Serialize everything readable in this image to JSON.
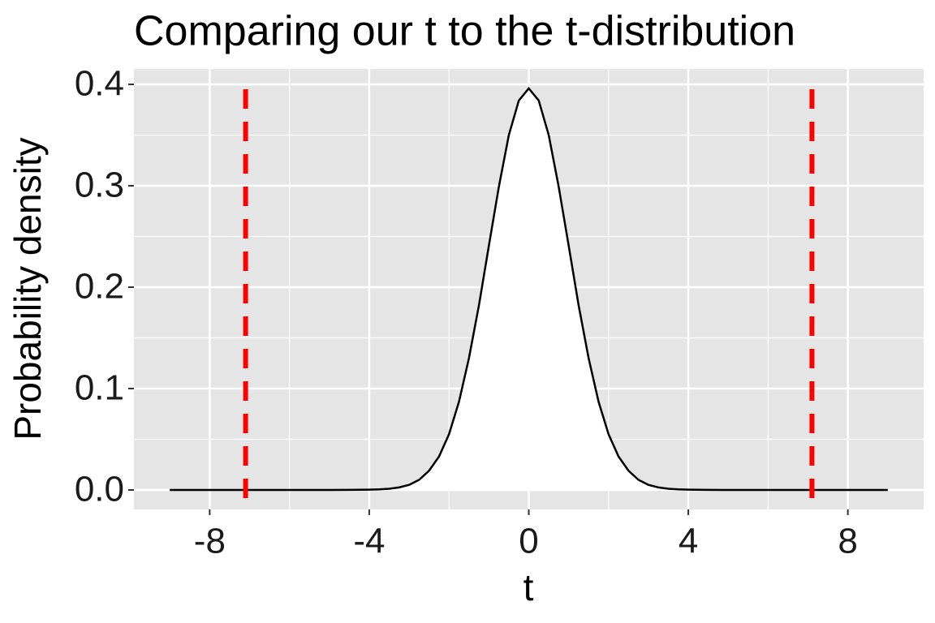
{
  "chart_data": {
    "type": "line",
    "title": "Comparing our t to the t-distribution",
    "xlabel": "t",
    "ylabel": "Probability density",
    "x": [
      -9,
      -8,
      -7,
      -6,
      -5,
      -4.5,
      -4,
      -3.75,
      -3.5,
      -3.25,
      -3,
      -2.75,
      -2.5,
      -2.25,
      -2,
      -1.75,
      -1.5,
      -1.25,
      -1,
      -0.75,
      -0.5,
      -0.25,
      0,
      0.25,
      0.5,
      0.75,
      1,
      1.25,
      1.5,
      1.75,
      2,
      2.25,
      2.5,
      2.75,
      3,
      3.25,
      3.5,
      3.75,
      4,
      4.5,
      5,
      6,
      7,
      8,
      9
    ],
    "series": [
      {
        "name": "t-distribution",
        "color": "#000000",
        "fill": "#ffffff",
        "values": [
          0,
          0,
          0,
          0,
          0,
          0.0001,
          0.0003,
          0.0006,
          0.0012,
          0.0025,
          0.005,
          0.01,
          0.019,
          0.033,
          0.055,
          0.087,
          0.13,
          0.182,
          0.241,
          0.299,
          0.35,
          0.384,
          0.396,
          0.384,
          0.35,
          0.299,
          0.241,
          0.182,
          0.13,
          0.087,
          0.055,
          0.033,
          0.019,
          0.01,
          0.005,
          0.0025,
          0.0012,
          0.0006,
          0.0003,
          0.0001,
          0,
          0,
          0,
          0,
          0
        ]
      }
    ],
    "vlines": [
      {
        "value": -7.1,
        "color": "#ff0000"
      },
      {
        "value": 7.1,
        "color": "#ff0000"
      }
    ],
    "xlim": [
      -9.9,
      9.9
    ],
    "ylim": [
      -0.0192,
      0.4152
    ],
    "xticks": [
      -8,
      -4,
      0,
      4,
      8
    ],
    "yticks": [
      {
        "value": 0,
        "label": "0.0"
      },
      0.1,
      0.2,
      0.3,
      0.4
    ],
    "xminorticks": [
      -6,
      -2,
      2,
      6
    ],
    "yminorticks": [
      0.05,
      0.15,
      0.25,
      0.35
    ],
    "grid": true
  }
}
